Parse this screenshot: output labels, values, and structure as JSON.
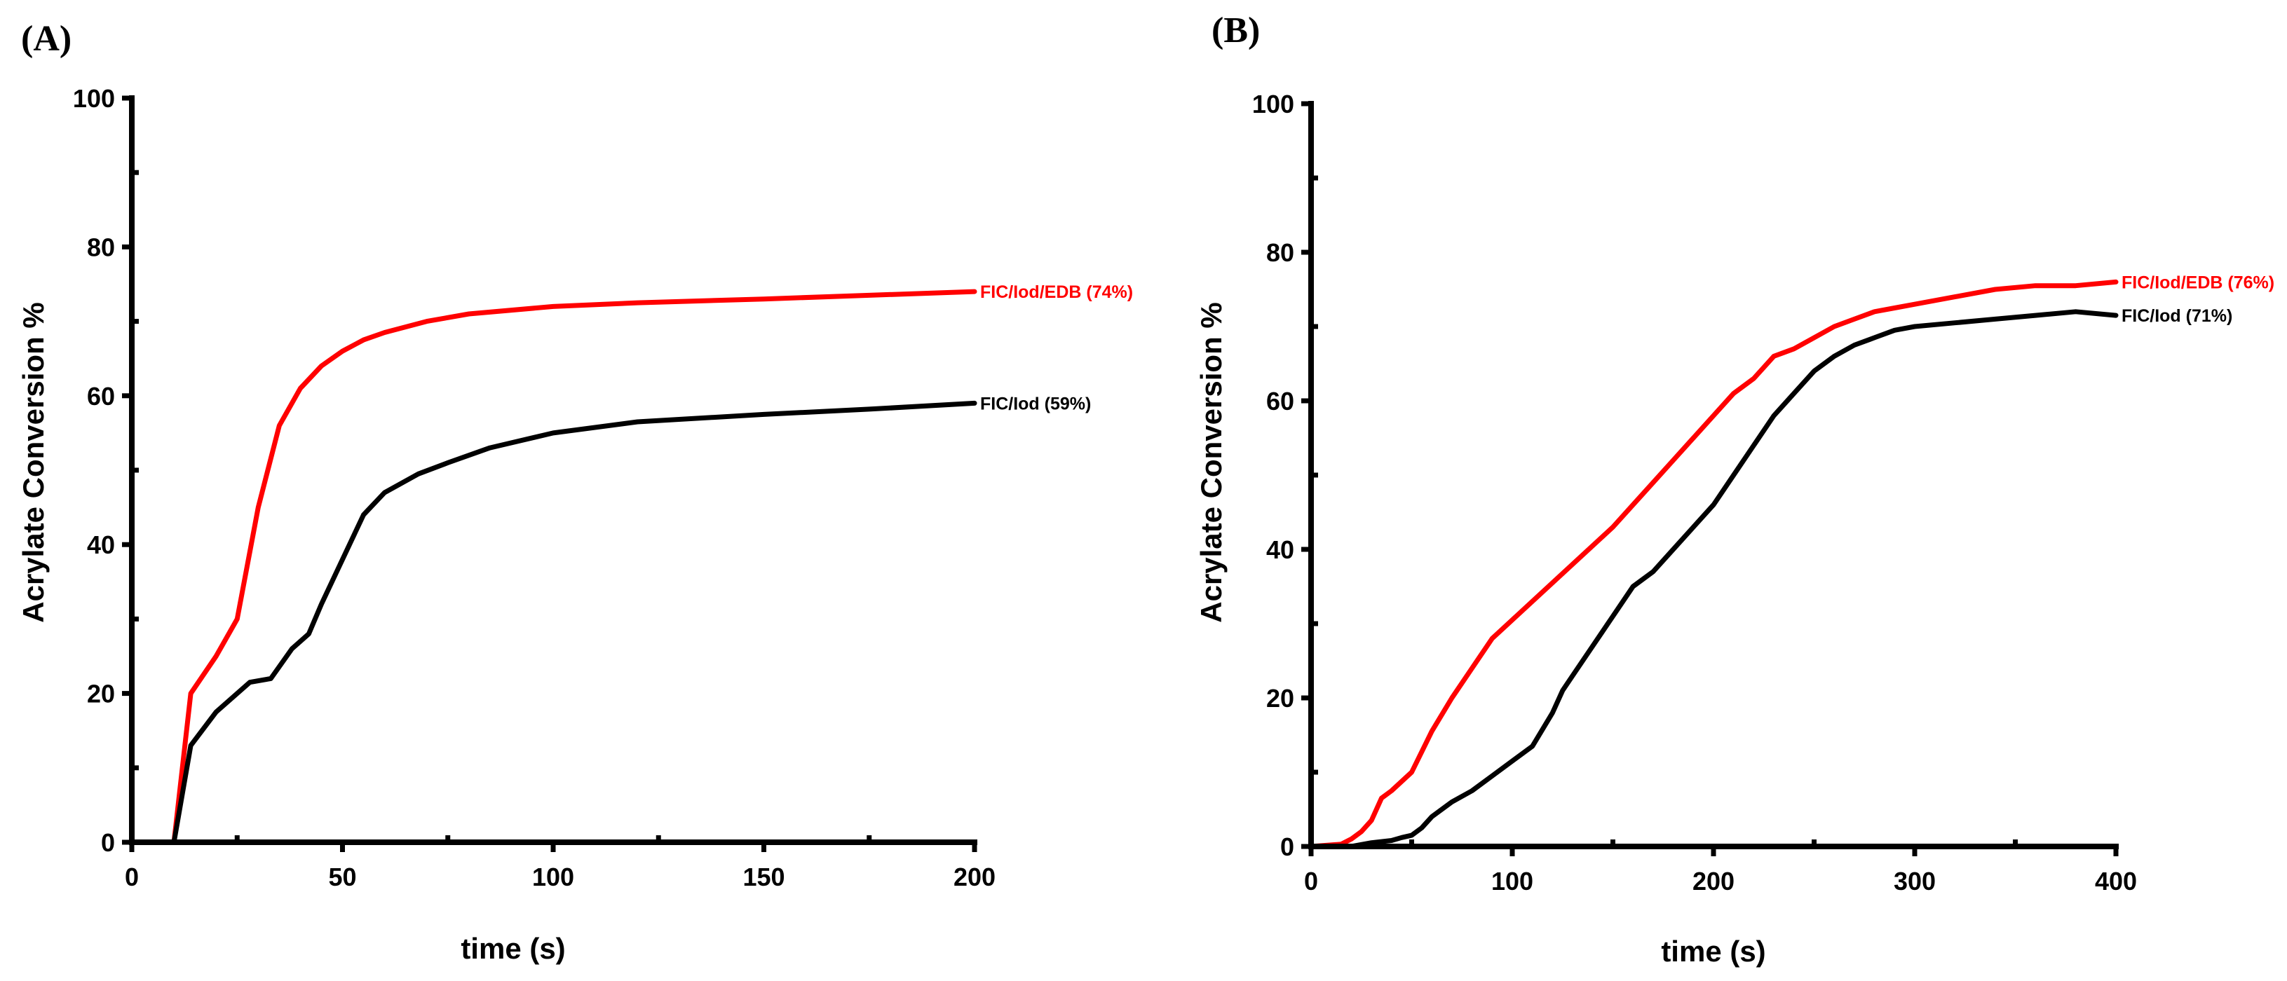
{
  "chart_data": [
    {
      "panel": "(A)",
      "type": "line",
      "xlabel": "time (s)",
      "ylabel": "Acrylate Conversion %",
      "xlim": [
        0,
        200
      ],
      "ylim": [
        0,
        100
      ],
      "xticks": [
        0,
        50,
        100,
        150,
        200
      ],
      "yticks": [
        0,
        20,
        40,
        60,
        80,
        100
      ],
      "grid": false,
      "series": [
        {
          "name": "FIC/Iod/EDB",
          "label": "FIC/Iod/EDB (74%)",
          "color": "#ff0000",
          "x": [
            0,
            10,
            14,
            20,
            25,
            30,
            35,
            40,
            45,
            50,
            55,
            60,
            70,
            80,
            100,
            120,
            150,
            175,
            200
          ],
          "y": [
            0,
            0,
            20,
            25,
            30,
            45,
            56,
            61,
            64,
            66,
            67.5,
            68.5,
            70,
            71,
            72,
            72.5,
            73,
            73.5,
            74
          ]
        },
        {
          "name": "FIC/Iod",
          "label": "FIC/Iod (59%)",
          "color": "#000000",
          "x": [
            0,
            10,
            14,
            20,
            28,
            33,
            38,
            42,
            45,
            50,
            55,
            60,
            68,
            75,
            85,
            100,
            120,
            150,
            175,
            200
          ],
          "y": [
            0,
            0,
            13,
            17.5,
            21.5,
            22,
            26,
            28,
            32,
            38,
            44,
            47,
            49.5,
            51,
            53,
            55,
            56.5,
            57.5,
            58.2,
            59
          ]
        }
      ]
    },
    {
      "panel": "(B)",
      "type": "line",
      "xlabel": "time (s)",
      "ylabel": "Acrylate Conversion %",
      "xlim": [
        0,
        400
      ],
      "ylim": [
        0,
        100
      ],
      "xticks": [
        0,
        100,
        200,
        300,
        400
      ],
      "yticks": [
        0,
        20,
        40,
        60,
        80,
        100
      ],
      "grid": false,
      "series": [
        {
          "name": "FIC/Iod/EDB",
          "label": "FIC/Iod/EDB (76%)",
          "color": "#ff0000",
          "x": [
            0,
            15,
            20,
            25,
            30,
            35,
            40,
            50,
            60,
            70,
            80,
            90,
            100,
            110,
            120,
            130,
            140,
            150,
            160,
            170,
            180,
            190,
            200,
            210,
            220,
            230,
            240,
            250,
            260,
            270,
            280,
            290,
            300,
            320,
            340,
            360,
            380,
            400
          ],
          "y": [
            0,
            0.3,
            1,
            2,
            3.5,
            6.5,
            7.5,
            10,
            15.5,
            20,
            24,
            28,
            30.5,
            33,
            35.5,
            38,
            40.5,
            43,
            46,
            49,
            52,
            55,
            58,
            61,
            63,
            66,
            67,
            68.5,
            70,
            71,
            72,
            72.5,
            73,
            74,
            75,
            75.5,
            75.5,
            76
          ]
        },
        {
          "name": "FIC/Iod",
          "label": "FIC/Iod (71%)",
          "color": "#000000",
          "x": [
            0,
            20,
            30,
            40,
            45,
            50,
            55,
            60,
            70,
            80,
            90,
            100,
            110,
            120,
            125,
            130,
            140,
            150,
            160,
            170,
            180,
            190,
            200,
            210,
            220,
            230,
            240,
            250,
            260,
            270,
            280,
            290,
            300,
            320,
            340,
            360,
            380,
            400
          ],
          "y": [
            0,
            0,
            0.5,
            0.8,
            1.2,
            1.5,
            2.5,
            4,
            6,
            7.5,
            9.5,
            11.5,
            13.5,
            18,
            21,
            23,
            27,
            31,
            35,
            37,
            40,
            43,
            46,
            50,
            54,
            58,
            61,
            64,
            66,
            67.5,
            68.5,
            69.5,
            70,
            70.5,
            71,
            71.5,
            72,
            71.5
          ]
        }
      ]
    }
  ]
}
